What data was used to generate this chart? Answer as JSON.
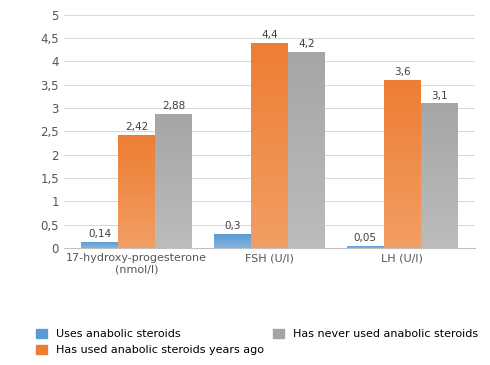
{
  "categories": [
    "17-hydroxy-progesterone\n(nmol/l)",
    "FSH (U/l)",
    "LH (U/l)"
  ],
  "series": {
    "Uses anabolic steroids": [
      0.14,
      0.3,
      0.05
    ],
    "Has used anabolic steroids years ago": [
      2.42,
      4.4,
      3.6
    ],
    "Has never used anabolic steroids": [
      2.88,
      4.2,
      3.1
    ]
  },
  "colors": {
    "Uses anabolic steroids": "#5b9bd5",
    "Has used anabolic steroids years ago": "#ed7d31",
    "Has never used anabolic steroids": "#a5a5a5"
  },
  "ylim": [
    0,
    5
  ],
  "yticks": [
    0,
    0.5,
    1.0,
    1.5,
    2.0,
    2.5,
    3.0,
    3.5,
    4.0,
    4.5,
    5.0
  ],
  "ytick_labels": [
    "0",
    "0,5",
    "1",
    "1,5",
    "2",
    "2,5",
    "3",
    "3,5",
    "4",
    "4,5",
    "5"
  ],
  "bar_width": 0.28,
  "label_fontsize": 8,
  "tick_fontsize": 8.5,
  "legend_fontsize": 8,
  "value_fontsize": 7.5,
  "label_strings": [
    [
      "0,14",
      "0,3",
      "0,05"
    ],
    [
      "2,42",
      "4,4",
      "3,6"
    ],
    [
      "2,88",
      "4,2",
      "3,1"
    ]
  ]
}
